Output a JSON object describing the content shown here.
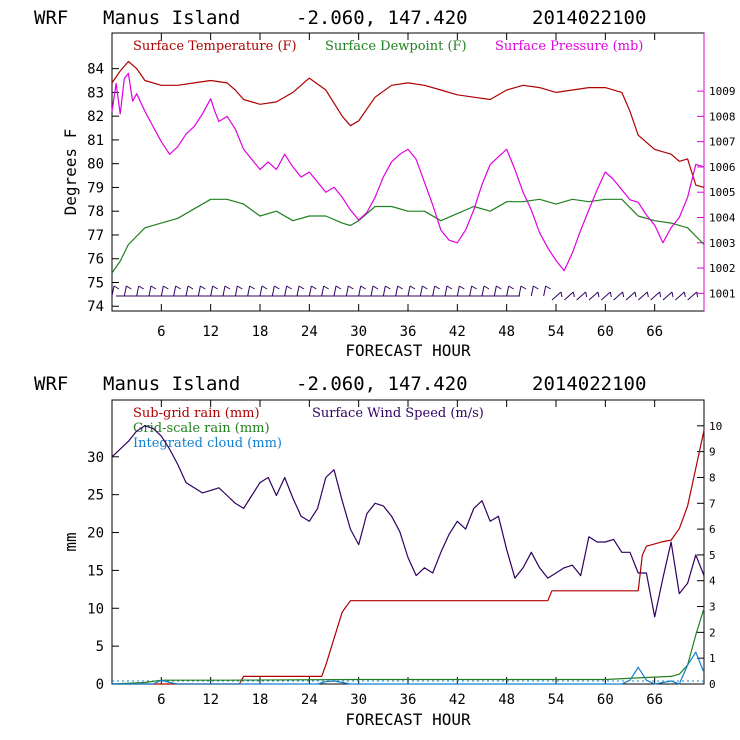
{
  "chart_data": [
    {
      "type": "line",
      "header": {
        "model": "WRF",
        "location": "Manus Island",
        "coords": "-2.060, 147.420",
        "init": "2014022100"
      },
      "xlabel": "FORECAST HOUR",
      "ylabel": "Degrees F",
      "xlim": [
        0,
        72
      ],
      "xticks": [
        "6",
        "12",
        "18",
        "24",
        "30",
        "36",
        "42",
        "48",
        "54",
        "60",
        "66"
      ],
      "ylim": [
        73.8,
        85.5
      ],
      "yticks": [
        "74",
        "75",
        "76",
        "77",
        "78",
        "79",
        "80",
        "81",
        "82",
        "83",
        "84"
      ],
      "y2lim": [
        1000.3,
        1011.3
      ],
      "y2ticks": [
        "1001",
        "1002",
        "1003",
        "1004",
        "1005",
        "1006",
        "1007",
        "1008",
        "1009"
      ],
      "legend": [
        {
          "label": "Surface Temperature (F)",
          "color": "#b00000"
        },
        {
          "label": "Surface Dewpoint (F)",
          "color": "#208020"
        },
        {
          "label": "Surface Pressure (mb)",
          "color": "#e000e0"
        }
      ],
      "series": [
        {
          "name": "Surface Temperature (F)",
          "axis": "left",
          "color": "#b00000",
          "x": [
            0,
            1,
            2,
            3,
            4,
            6,
            8,
            10,
            12,
            14,
            15,
            16,
            18,
            20,
            22,
            24,
            26,
            28,
            29,
            30,
            32,
            34,
            36,
            38,
            40,
            42,
            44,
            46,
            48,
            50,
            52,
            54,
            56,
            58,
            60,
            62,
            63,
            64,
            66,
            68,
            69,
            70,
            71,
            72
          ],
          "values": [
            83.4,
            83.9,
            84.3,
            84.0,
            83.5,
            83.3,
            83.3,
            83.4,
            83.5,
            83.4,
            83.1,
            82.7,
            82.5,
            82.6,
            83.0,
            83.6,
            83.1,
            82.0,
            81.6,
            81.8,
            82.8,
            83.3,
            83.4,
            83.3,
            83.1,
            82.9,
            82.8,
            82.7,
            83.1,
            83.3,
            83.2,
            83.0,
            83.1,
            83.2,
            83.2,
            83.0,
            82.2,
            81.2,
            80.6,
            80.4,
            80.1,
            80.2,
            79.1,
            79.0
          ]
        },
        {
          "name": "Surface Dewpoint (F)",
          "axis": "left",
          "color": "#208020",
          "x": [
            0,
            1,
            2,
            4,
            6,
            8,
            10,
            12,
            14,
            16,
            18,
            20,
            22,
            24,
            26,
            28,
            29,
            30,
            32,
            34,
            36,
            38,
            40,
            42,
            44,
            46,
            48,
            50,
            52,
            54,
            56,
            58,
            60,
            62,
            64,
            66,
            68,
            70,
            72
          ],
          "values": [
            75.4,
            75.9,
            76.6,
            77.3,
            77.5,
            77.7,
            78.1,
            78.5,
            78.5,
            78.3,
            77.8,
            78.0,
            77.6,
            77.8,
            77.8,
            77.5,
            77.4,
            77.6,
            78.2,
            78.2,
            78.0,
            78.0,
            77.6,
            77.9,
            78.2,
            78.0,
            78.4,
            78.4,
            78.5,
            78.3,
            78.5,
            78.4,
            78.5,
            78.5,
            77.8,
            77.6,
            77.5,
            77.3,
            76.6
          ]
        },
        {
          "name": "Surface Pressure (mb)",
          "axis": "right",
          "color": "#e000e0",
          "x": [
            0,
            0.5,
            1,
            1.5,
            2,
            2.5,
            3,
            4,
            5,
            6,
            7,
            8,
            9,
            10,
            11,
            12,
            12.5,
            13,
            14,
            15,
            16,
            17,
            18,
            19,
            20,
            21,
            22,
            23,
            24,
            25,
            26,
            27,
            28,
            29,
            30,
            31,
            32,
            33,
            34,
            35,
            36,
            37,
            38,
            39,
            40,
            41,
            42,
            43,
            44,
            45,
            46,
            47,
            48,
            49,
            50,
            51,
            52,
            53,
            54,
            55,
            56,
            57,
            58,
            59,
            60,
            61,
            62,
            63,
            64,
            65,
            66,
            67,
            68,
            69,
            70,
            71,
            72
          ],
          "values": [
            1008.2,
            1009.3,
            1008.1,
            1009.5,
            1009.7,
            1008.6,
            1008.9,
            1008.2,
            1007.6,
            1007.0,
            1006.5,
            1006.8,
            1007.3,
            1007.6,
            1008.1,
            1008.7,
            1008.2,
            1007.8,
            1008.0,
            1007.5,
            1006.7,
            1006.3,
            1005.9,
            1006.2,
            1005.9,
            1006.5,
            1006.0,
            1005.6,
            1005.8,
            1005.4,
            1005.0,
            1005.2,
            1004.8,
            1004.3,
            1003.9,
            1004.2,
            1004.8,
            1005.6,
            1006.2,
            1006.5,
            1006.7,
            1006.3,
            1005.4,
            1004.5,
            1003.5,
            1003.1,
            1003.0,
            1003.5,
            1004.3,
            1005.3,
            1006.1,
            1006.4,
            1006.7,
            1005.9,
            1005.0,
            1004.3,
            1003.4,
            1002.8,
            1002.3,
            1001.9,
            1002.6,
            1003.5,
            1004.3,
            1005.1,
            1005.8,
            1005.5,
            1005.1,
            1004.7,
            1004.6,
            1004.1,
            1003.7,
            1003.0,
            1003.6,
            1004.0,
            1004.8,
            1006.1,
            1006.0
          ]
        }
      ],
      "wind_barbs_note": "Surface wind barbs along the bottom of the plot"
    },
    {
      "type": "line",
      "header": {
        "model": "WRF",
        "location": "Manus Island",
        "coords": "-2.060, 147.420",
        "init": "2014022100"
      },
      "xlabel": "FORECAST HOUR",
      "ylabel": "mm",
      "xlim": [
        0,
        72
      ],
      "xticks": [
        "6",
        "12",
        "18",
        "24",
        "30",
        "36",
        "42",
        "48",
        "54",
        "60",
        "66"
      ],
      "ylim": [
        0,
        37.5
      ],
      "yticks": [
        "0",
        "5",
        "10",
        "15",
        "20",
        "25",
        "30"
      ],
      "y2lim": [
        0,
        11
      ],
      "y2ticks": [
        "0",
        "1",
        "2",
        "3",
        "4",
        "5",
        "6",
        "7",
        "8",
        "9",
        "10"
      ],
      "legend": [
        {
          "label": "Sub-grid rain (mm)",
          "color": "#b00000"
        },
        {
          "label": "Surface Wind Speed (m/s)",
          "color": "#300060"
        },
        {
          "label": "Grid-scale rain (mm)",
          "color": "#208020"
        },
        {
          "label": "Integrated cloud (mm)",
          "color": "#1080d0"
        }
      ],
      "series": [
        {
          "name": "Sub-grid rain (mm)",
          "axis": "left",
          "color": "#b00000",
          "x": [
            0,
            15.5,
            16,
            25.5,
            26,
            27,
            28,
            29,
            53,
            53.5,
            64,
            64.5,
            65,
            66,
            67,
            68,
            69,
            70,
            71,
            72
          ],
          "values": [
            0,
            0,
            1.0,
            1.0,
            2.5,
            6.0,
            9.5,
            11.0,
            11.0,
            12.3,
            12.3,
            17.0,
            18.2,
            18.5,
            18.8,
            19.0,
            20.5,
            23.5,
            28.5,
            33.5
          ]
        },
        {
          "name": "Surface Wind Speed (m/s)",
          "axis": "right",
          "color": "#300060",
          "x": [
            0,
            1,
            2,
            3,
            4,
            5,
            6,
            7,
            8,
            9,
            10,
            11,
            12,
            13,
            14,
            15,
            16,
            17,
            18,
            19,
            20,
            21,
            22,
            23,
            24,
            25,
            26,
            27,
            28,
            29,
            30,
            31,
            32,
            33,
            34,
            35,
            36,
            37,
            38,
            39,
            40,
            41,
            42,
            43,
            44,
            45,
            46,
            47,
            48,
            49,
            50,
            51,
            52,
            53,
            54,
            55,
            56,
            57,
            58,
            59,
            60,
            61,
            62,
            63,
            64,
            65,
            66,
            67,
            68,
            69,
            70,
            71,
            72
          ],
          "values": [
            8.8,
            9.1,
            9.4,
            9.8,
            10.0,
            9.9,
            9.6,
            9.1,
            8.5,
            7.8,
            7.6,
            7.4,
            7.5,
            7.6,
            7.3,
            7.0,
            6.8,
            7.3,
            7.8,
            8.0,
            7.3,
            8.0,
            7.2,
            6.5,
            6.3,
            6.8,
            8.0,
            8.3,
            7.1,
            6.0,
            5.4,
            6.6,
            7.0,
            6.9,
            6.5,
            5.9,
            4.9,
            4.2,
            4.5,
            4.3,
            5.1,
            5.8,
            6.3,
            6.0,
            6.8,
            7.1,
            6.3,
            6.5,
            5.2,
            4.1,
            4.5,
            5.1,
            4.5,
            4.1,
            4.3,
            4.5,
            4.6,
            4.2,
            5.7,
            5.5,
            5.5,
            5.6,
            5.1,
            5.1,
            4.3,
            4.3,
            2.6,
            4.1,
            5.5,
            3.5,
            3.9,
            5.0,
            4.2
          ]
        },
        {
          "name": "Grid-scale rain (mm)",
          "axis": "left",
          "color": "#208020",
          "x": [
            0,
            4,
            6,
            14,
            30,
            60,
            64,
            68,
            69,
            70,
            71,
            72
          ],
          "values": [
            0,
            0.2,
            0.5,
            0.5,
            0.6,
            0.6,
            0.8,
            1.0,
            1.3,
            2.5,
            6.5,
            10.0
          ]
        },
        {
          "name": "Integrated cloud (mm)",
          "axis": "left",
          "color": "#1080d0",
          "x": [
            0,
            5,
            6,
            7,
            8,
            25,
            26,
            27,
            28,
            29,
            62,
            63,
            64,
            65,
            66,
            67,
            68,
            69,
            70,
            71,
            72
          ],
          "values": [
            0,
            0,
            0.5,
            0.2,
            0,
            0,
            0.3,
            0.4,
            0.2,
            0,
            0,
            0.5,
            2.2,
            0.5,
            0,
            0.2,
            0.4,
            0,
            2.5,
            4.2,
            1.5
          ]
        }
      ]
    }
  ]
}
